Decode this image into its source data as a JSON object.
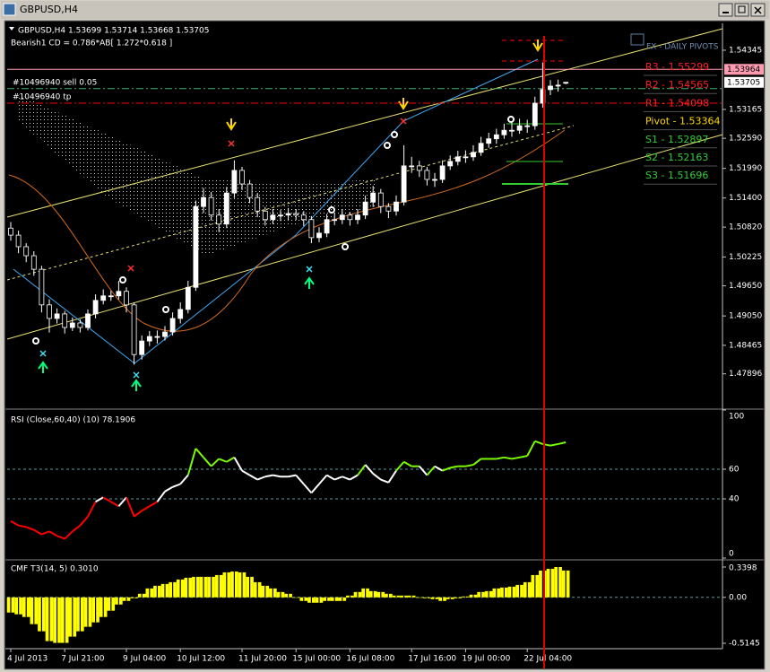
{
  "window": {
    "title": "GBPUSD,H4"
  },
  "chart_data": [
    {
      "type": "candlestick",
      "title": "GBPUSD,H4  1.53699 1.53714 1.53668 1.53705",
      "subtitle": "Bearish1 CD = 0.786*AB[ 1.272*0.618 ]",
      "annotation": "FX - DAILY PIVOTS",
      "categories": [
        "4 Jul 2013",
        null,
        null,
        null,
        null,
        null,
        null,
        "7 Jul 21:00",
        null,
        null,
        null,
        null,
        null,
        null,
        null,
        "9 Jul 04:00",
        null,
        null,
        null,
        null,
        null,
        null,
        "10 Jul 12:00",
        null,
        null,
        null,
        null,
        null,
        null,
        null,
        "11 Jul 20:00",
        null,
        null,
        null,
        null,
        null,
        null,
        "15 Jul 00:00",
        null,
        null,
        null,
        null,
        null,
        null,
        "16 Jul 08:00",
        null,
        null,
        null,
        null,
        null,
        null,
        null,
        "17 Jul 16:00",
        null,
        null,
        null,
        null,
        null,
        null,
        "19 Jul 00:00",
        null,
        null,
        null,
        null,
        null,
        null,
        null,
        "22 Jul 04:00",
        null,
        null,
        null,
        null,
        null
      ],
      "open": [
        1.508,
        1.5066,
        1.5043,
        1.5025,
        1.4998,
        1.4927,
        1.49,
        1.4909,
        1.4882,
        1.4891,
        1.4882,
        1.4909,
        1.4936,
        1.4945,
        1.4945,
        1.4954,
        1.4927,
        1.4828,
        1.4855,
        1.4864,
        1.4864,
        1.4873,
        1.49,
        1.4918,
        1.4962,
        1.5123,
        1.5141,
        1.5106,
        1.5088,
        1.515,
        1.5195,
        1.5168,
        1.5141,
        1.5114,
        1.5097,
        1.5106,
        1.5106,
        1.5109,
        1.5106,
        1.5097,
        1.5061,
        1.507,
        1.5097,
        1.5097,
        1.5106,
        1.5097,
        1.5106,
        1.5132,
        1.515,
        1.5123,
        1.5114,
        1.5132,
        1.5204,
        1.5204,
        1.5195,
        1.5177,
        1.5177,
        1.5204,
        1.5213,
        1.5222,
        1.5222,
        1.5231,
        1.5249,
        1.5258,
        1.5266,
        1.5275,
        1.5275,
        1.5284,
        1.5284,
        1.5329,
        1.5356,
        1.5363,
        1.53699
      ],
      "high": [
        1.5092,
        1.5075,
        1.505,
        1.5034,
        1.5005,
        1.4938,
        1.492,
        1.4915,
        1.4902,
        1.4898,
        1.4918,
        1.4948,
        1.4958,
        1.4955,
        1.4975,
        1.4962,
        1.4932,
        1.4866,
        1.4875,
        1.4876,
        1.4885,
        1.4912,
        1.4932,
        1.4975,
        1.5135,
        1.516,
        1.5152,
        1.5118,
        1.5162,
        1.5215,
        1.5202,
        1.5176,
        1.515,
        1.5122,
        1.5118,
        1.5116,
        1.512,
        1.5118,
        1.5114,
        1.5104,
        1.5082,
        1.5108,
        1.511,
        1.5118,
        1.5112,
        1.5118,
        1.5145,
        1.5164,
        1.5158,
        1.513,
        1.5145,
        1.5245,
        1.5222,
        1.5214,
        1.5202,
        1.519,
        1.5215,
        1.5225,
        1.5234,
        1.5235,
        1.5245,
        1.5262,
        1.527,
        1.5278,
        1.5288,
        1.529,
        1.5298,
        1.5296,
        1.5342,
        1.541,
        1.5375,
        1.5376,
        1.53714
      ],
      "low": [
        1.5055,
        1.503,
        1.5012,
        1.4985,
        1.4912,
        1.4872,
        1.489,
        1.487,
        1.4875,
        1.4872,
        1.4876,
        1.49,
        1.4928,
        1.4935,
        1.4938,
        1.4912,
        1.4808,
        1.4818,
        1.4845,
        1.485,
        1.4856,
        1.4866,
        1.489,
        1.491,
        1.4955,
        1.511,
        1.5095,
        1.5072,
        1.508,
        1.514,
        1.5156,
        1.513,
        1.5102,
        1.5085,
        1.5088,
        1.5094,
        1.5096,
        1.5096,
        1.5084,
        1.505,
        1.5052,
        1.5062,
        1.5086,
        1.5088,
        1.5085,
        1.5088,
        1.5098,
        1.5122,
        1.511,
        1.51,
        1.5105,
        1.5125,
        1.519,
        1.5182,
        1.5165,
        1.5162,
        1.517,
        1.5196,
        1.5205,
        1.521,
        1.5214,
        1.5224,
        1.524,
        1.5248,
        1.5258,
        1.5262,
        1.5268,
        1.527,
        1.5276,
        1.532,
        1.5345,
        1.5352,
        1.53668
      ],
      "close": [
        1.5066,
        1.5043,
        1.5025,
        1.4998,
        1.4927,
        1.49,
        1.4909,
        1.4882,
        1.4891,
        1.4882,
        1.4909,
        1.4936,
        1.4945,
        1.4945,
        1.4954,
        1.4927,
        1.4828,
        1.4855,
        1.4864,
        1.4864,
        1.4873,
        1.49,
        1.4918,
        1.4962,
        1.5123,
        1.5141,
        1.5106,
        1.5088,
        1.515,
        1.5195,
        1.5168,
        1.5141,
        1.5114,
        1.5097,
        1.5106,
        1.5106,
        1.5109,
        1.5106,
        1.5097,
        1.5061,
        1.507,
        1.5097,
        1.5097,
        1.5106,
        1.5097,
        1.5106,
        1.5132,
        1.515,
        1.5123,
        1.5114,
        1.5132,
        1.5204,
        1.5204,
        1.5195,
        1.5177,
        1.5177,
        1.5204,
        1.5213,
        1.5222,
        1.5222,
        1.5231,
        1.5249,
        1.5258,
        1.5266,
        1.5275,
        1.5275,
        1.5284,
        1.5284,
        1.5329,
        1.5356,
        1.5363,
        1.5365,
        1.53705
      ],
      "up_color": "#ffffff",
      "down_color": "#000000",
      "wick_color": "#ffffff",
      "ylim": [
        1.47211,
        1.54881
      ],
      "yticks": [
        1.54345,
        1.53165,
        {
          "value": 1.5259,
          "label": "1.52590"
        },
        {
          "value": 1.5199,
          "label": "1.51990"
        },
        {
          "value": 1.514,
          "label": "1.51400"
        },
        {
          "value": 1.5082,
          "label": "1.50820"
        },
        1.50225,
        {
          "value": 1.4965,
          "label": "1.49650"
        },
        {
          "value": 1.4905,
          "label": "1.49050"
        },
        1.48465,
        1.47896
      ],
      "price_markers": [
        {
          "value": 1.53964,
          "color": "#ff9bb0",
          "line": true
        },
        {
          "value": 1.53705,
          "color": "#ffffff",
          "line": false
        }
      ],
      "order_lines": [
        {
          "label": "#10496940 sell 0.05",
          "value": 1.5358,
          "color": "#3cb371"
        },
        {
          "label": "#10496940 tp",
          "value": 1.5329,
          "color": "#ff0000"
        }
      ],
      "pivots": [
        {
          "label": "R3 - 1.55299",
          "color": "#ff2020"
        },
        {
          "label": "R2 - 1.54565",
          "color": "#ff2020"
        },
        {
          "label": "R1 - 1.54098",
          "color": "#ff2020"
        },
        {
          "label": "Pivot - 1.53364",
          "color": "#ffd700"
        },
        {
          "label": "S1 - 1.52897",
          "color": "#32cd32"
        },
        {
          "label": "S2 - 1.52163",
          "color": "#32cd32"
        },
        {
          "label": "S3 - 1.51696",
          "color": "#32cd32"
        }
      ]
    },
    {
      "type": "line",
      "title": "RSI (Close,60,40) (10) 78.1906",
      "values": [
        25,
        22,
        21,
        19,
        16,
        18,
        15,
        13,
        18,
        22,
        28,
        38,
        41,
        38,
        35,
        41,
        28,
        32,
        35,
        38,
        45,
        48,
        50,
        56,
        74,
        68,
        62,
        67,
        65,
        68,
        59,
        56,
        53,
        55,
        56,
        55,
        55,
        56,
        50,
        44,
        50,
        56,
        53,
        55,
        53,
        56,
        63,
        57,
        53,
        51,
        59,
        65,
        62,
        62,
        56,
        62,
        59,
        61,
        62,
        62,
        63,
        67,
        67,
        67,
        68,
        67,
        68,
        69,
        79,
        77,
        76,
        77,
        78.1906
      ],
      "zones": [
        40,
        60
      ],
      "colors": [
        "#ff0000",
        "#ffffff",
        "#7cfc00"
      ],
      "ylim": [
        0,
        100
      ],
      "yticks": [
        100,
        60,
        40,
        0
      ],
      "grid_lines": [
        60,
        40
      ]
    },
    {
      "type": "bar",
      "title": "CMF T3(14, 5) 0.3010",
      "values": [
        -0.17,
        -0.19,
        -0.22,
        -0.3,
        -0.38,
        -0.49,
        -0.51,
        -0.51,
        -0.44,
        -0.38,
        -0.33,
        -0.28,
        -0.22,
        -0.15,
        -0.08,
        -0.04,
        -0.01,
        0.04,
        0.1,
        0.13,
        0.15,
        0.17,
        0.2,
        0.22,
        0.23,
        0.23,
        0.23,
        0.25,
        0.28,
        0.29,
        0.28,
        0.23,
        0.17,
        0.13,
        0.1,
        0.06,
        0.04,
        0,
        -0.04,
        -0.06,
        -0.06,
        -0.04,
        -0.04,
        -0.04,
        0.02,
        0.06,
        0.1,
        0.07,
        0.06,
        0.04,
        0.02,
        0.02,
        0.02,
        0,
        -0.01,
        -0.02,
        -0.04,
        -0.02,
        -0.01,
        0.01,
        0.03,
        0.06,
        0.07,
        0.1,
        0.11,
        0.12,
        0.14,
        0.17,
        0.25,
        0.3,
        0.32,
        0.34,
        0.301
      ],
      "color": "#ffff00",
      "ylim": [
        -0.5648,
        0.4001
      ],
      "yticks": [
        0.3398,
        {
          "value": 0,
          "label": "0.00"
        },
        -0.5145
      ],
      "grid_lines": [
        0
      ]
    }
  ]
}
